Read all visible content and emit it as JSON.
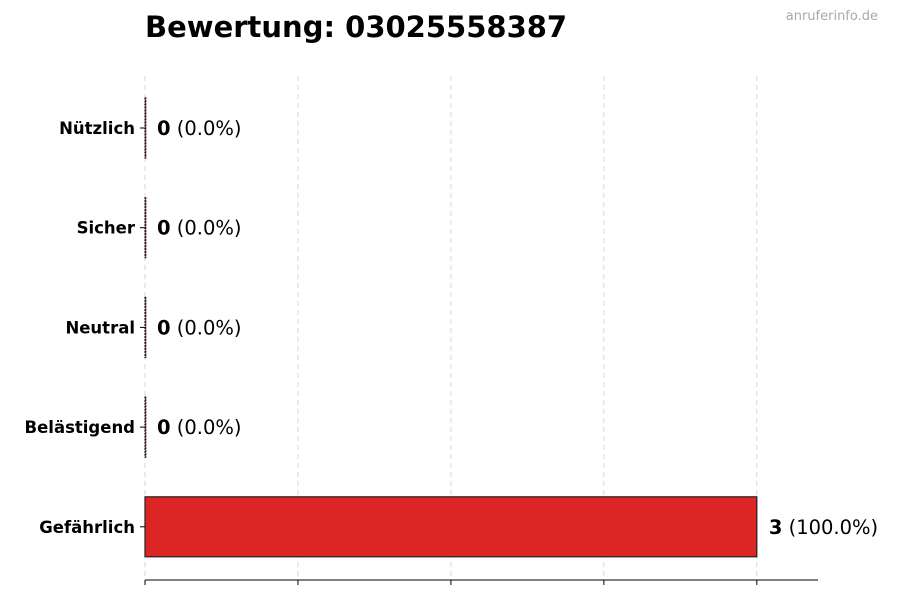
{
  "watermark": "anruferinfo.de",
  "chart_data": {
    "type": "bar",
    "orientation": "horizontal",
    "title": "Bewertung: 03025558387",
    "categories": [
      "Nützlich",
      "Sicher",
      "Neutral",
      "Belästigend",
      "Gefährlich"
    ],
    "values": [
      0,
      0,
      0,
      0,
      3
    ],
    "value_labels": [
      "0",
      "0",
      "0",
      "0",
      "3"
    ],
    "percent_labels": [
      "(0.0%)",
      "(0.0%)",
      "(0.0%)",
      "(0.0%)",
      "(100.0%)"
    ],
    "xlim": [
      0,
      3.3
    ],
    "xticks": [
      0,
      0.75,
      1.5,
      2.25,
      3
    ],
    "xtick_labels_shown": false,
    "grid": "vertical dashed",
    "bar_color": "#dc2626",
    "edge_color": "#222222"
  }
}
